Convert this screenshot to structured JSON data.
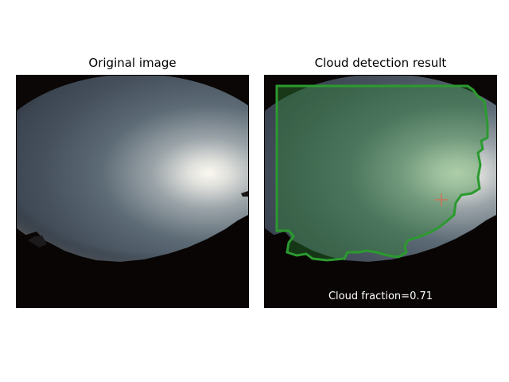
{
  "left_panel": {
    "title": "Original image"
  },
  "right_panel": {
    "title": "Cloud detection result",
    "cloud_fraction_label": "Cloud fraction=0.71",
    "cloud_fraction": 0.71
  },
  "colors": {
    "overlay_fill": "#2f8a35",
    "overlay_outline": "#2b9a2f",
    "ground": "#080504",
    "sky_dark": "#3b4652",
    "sky_bright": "#f2efe8",
    "sun_marker": "#e06a4a"
  },
  "icons": {
    "sun_marker": "plus-marker"
  }
}
